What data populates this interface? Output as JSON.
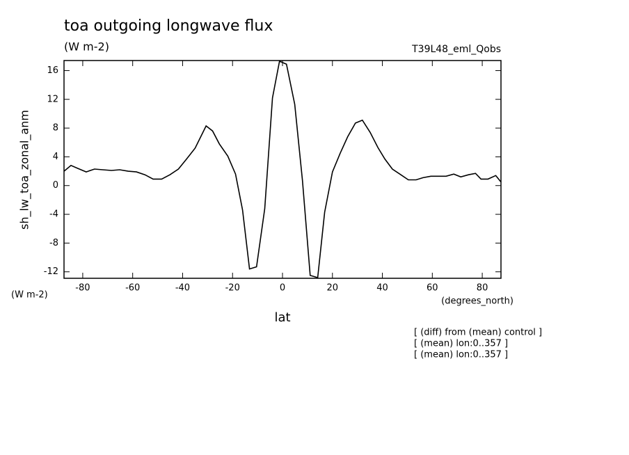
{
  "chart_data": {
    "type": "line",
    "title": "toa outgoing longwave flux",
    "subtitle": "(W m-2)",
    "experiment": "T39L48_eml_Qobs",
    "y_label": "sh_lw_toa_zonal_anm",
    "y_units": "(W m-2)",
    "x_units": "(degrees_north)",
    "x_label": "lat",
    "notes": [
      "[ (diff) from (mean) control ]",
      "[ (mean) lon:0..357 ]",
      "[ (mean) lon:0..357 ]"
    ],
    "xlim": [
      -87.5,
      87.5
    ],
    "ylim": [
      -12.9,
      17.4
    ],
    "xticks": [
      -80,
      -60,
      -40,
      -20,
      0,
      20,
      40,
      60,
      80
    ],
    "yticks": [
      -12,
      -8,
      -4,
      0,
      4,
      8,
      12,
      16
    ],
    "series": [
      {
        "color": "#000000",
        "x": [
          -87.5,
          -84.7,
          -82,
          -78.6,
          -75.3,
          -72,
          -68.5,
          -65.2,
          -61.8,
          -58.5,
          -55.1,
          -51.8,
          -48.4,
          -45.1,
          -41.7,
          -38.4,
          -35,
          -30.6,
          -28,
          -25.3,
          -21.9,
          -18.8,
          -16,
          -13.2,
          -10.4,
          -7.1,
          -4,
          -1.2,
          1.6,
          4.9,
          8,
          11.1,
          14.1,
          16.9,
          20,
          23.1,
          26.1,
          29.2,
          32,
          35.1,
          38.2,
          41,
          44,
          47.4,
          50.4,
          53.5,
          56.3,
          59.4,
          62.5,
          65.5,
          68.6,
          71.4,
          74.5,
          77.3,
          79.5,
          82.3,
          85.4,
          87.5
        ],
        "values": [
          2.0,
          2.8,
          2.4,
          1.9,
          2.3,
          2.2,
          2.1,
          2.2,
          2.0,
          1.9,
          1.5,
          0.9,
          0.9,
          1.5,
          2.3,
          3.7,
          5.2,
          8.3,
          7.6,
          5.8,
          4.1,
          1.6,
          -3.4,
          -11.6,
          -11.3,
          -3.2,
          12.2,
          17.3,
          16.9,
          11.3,
          0.7,
          -12.5,
          -12.8,
          -3.7,
          1.9,
          4.5,
          6.8,
          8.7,
          9.1,
          7.4,
          5.3,
          3.7,
          2.3,
          1.5,
          0.8,
          0.8,
          1.1,
          1.3,
          1.3,
          1.3,
          1.6,
          1.2,
          1.5,
          1.7,
          0.9,
          0.9,
          1.4,
          0.5
        ]
      }
    ]
  }
}
